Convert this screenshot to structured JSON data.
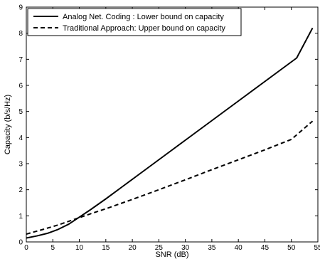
{
  "chart_data": {
    "type": "line",
    "title": "",
    "xlabel": "SNR (dB)",
    "ylabel": "Capacity (b/s/Hz)",
    "xlim": [
      0,
      55
    ],
    "ylim": [
      0,
      9
    ],
    "xticks": [
      0,
      5,
      10,
      15,
      20,
      25,
      30,
      35,
      40,
      45,
      50,
      55
    ],
    "yticks": [
      0,
      1,
      2,
      3,
      4,
      5,
      6,
      7,
      8,
      9
    ],
    "grid": false,
    "legend_position": "top-left",
    "series": [
      {
        "name": "Analog Net. Coding : Lower bound on capacity",
        "style": "solid",
        "x": [
          0,
          2,
          4,
          6,
          8,
          10,
          12,
          15,
          18,
          21,
          24,
          27,
          30,
          33,
          36,
          39,
          42,
          45,
          48,
          51,
          54
        ],
        "y": [
          0.15,
          0.23,
          0.33,
          0.48,
          0.68,
          0.95,
          1.22,
          1.65,
          2.1,
          2.55,
          3.0,
          3.45,
          3.9,
          4.35,
          4.8,
          5.25,
          5.7,
          6.15,
          6.6,
          7.05,
          8.2
        ]
      },
      {
        "name": "Traditional Approach: Upper bound on capacity",
        "style": "dashed",
        "x": [
          0,
          3,
          6,
          9,
          12,
          15,
          20,
          25,
          30,
          35,
          40,
          45,
          50,
          54
        ],
        "y": [
          0.3,
          0.47,
          0.65,
          0.86,
          1.07,
          1.27,
          1.63,
          2.0,
          2.38,
          2.77,
          3.15,
          3.53,
          3.93,
          4.63
        ]
      }
    ]
  }
}
